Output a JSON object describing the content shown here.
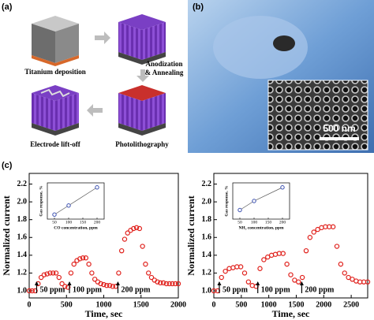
{
  "panels": {
    "a": {
      "label": "(a)",
      "steps": [
        "Titanium deposition",
        [
          "Anodization",
          "& Annealing"
        ],
        "Photolithography",
        "Electrode lift-off"
      ]
    },
    "b": {
      "label": "(b)",
      "scale_bar": "500 nm"
    },
    "c": {
      "label": "(c)"
    }
  },
  "chart_data": [
    {
      "type": "scatter",
      "xlabel": "Time, sec",
      "ylabel": "Normalized current",
      "color": "#e0201b",
      "xlim": [
        0,
        2000
      ],
      "xticks": [
        0,
        500,
        1000,
        1500,
        2000
      ],
      "ylim": [
        0.92,
        2.32
      ],
      "yticks": [
        {
          "value": 1,
          "label": "1.0"
        },
        1.2,
        1.4,
        1.6,
        1.8,
        {
          "value": 2,
          "label": "2.0"
        },
        2.2
      ],
      "annotations": [
        {
          "text": "50 ppm",
          "x": 100
        },
        {
          "text": "100 ppm",
          "x": 540
        },
        {
          "text": "200 ppm",
          "x": 1190
        }
      ],
      "x": [
        0,
        40,
        80,
        120,
        160,
        200,
        240,
        280,
        320,
        360,
        400,
        440,
        480,
        520,
        560,
        600,
        640,
        680,
        720,
        760,
        800,
        840,
        880,
        920,
        960,
        1000,
        1040,
        1080,
        1120,
        1160,
        1200,
        1240,
        1280,
        1320,
        1360,
        1400,
        1440,
        1480,
        1520,
        1560,
        1600,
        1640,
        1680,
        1720,
        1760,
        1800,
        1840,
        1880,
        1920,
        1960,
        2000
      ],
      "values": [
        1.0,
        1.0,
        1.0,
        1.08,
        1.15,
        1.18,
        1.19,
        1.2,
        1.2,
        1.2,
        1.15,
        1.08,
        1.05,
        1.04,
        1.2,
        1.3,
        1.34,
        1.36,
        1.37,
        1.37,
        1.3,
        1.2,
        1.13,
        1.1,
        1.08,
        1.07,
        1.06,
        1.06,
        1.05,
        1.05,
        1.2,
        1.45,
        1.58,
        1.65,
        1.68,
        1.7,
        1.71,
        1.7,
        1.5,
        1.3,
        1.2,
        1.15,
        1.12,
        1.1,
        1.09,
        1.09,
        1.08,
        1.08,
        1.08,
        1.08,
        1.08
      ]
    },
    {
      "type": "scatter",
      "xlabel": "Time, sec",
      "ylabel": "Normalized current",
      "color": "#e0201b",
      "xlim": [
        0,
        2800
      ],
      "xticks": [
        0,
        500,
        1000,
        1500,
        2000,
        2500
      ],
      "ylim": [
        0.92,
        2.32
      ],
      "yticks": [
        {
          "value": 1,
          "label": "1.0"
        },
        1.2,
        1.4,
        1.6,
        1.8,
        {
          "value": 2,
          "label": "2.0"
        },
        2.2
      ],
      "annotations": [
        {
          "text": "50 ppm",
          "x": 100
        },
        {
          "text": "100 ppm",
          "x": 800
        },
        {
          "text": "200 ppm",
          "x": 1600
        }
      ],
      "x": [
        0,
        70,
        140,
        210,
        280,
        350,
        420,
        490,
        560,
        630,
        700,
        770,
        840,
        910,
        980,
        1050,
        1120,
        1190,
        1260,
        1330,
        1400,
        1470,
        1540,
        1610,
        1680,
        1750,
        1820,
        1890,
        1960,
        2030,
        2100,
        2170,
        2240,
        2310,
        2380,
        2450,
        2520,
        2590,
        2660,
        2730,
        2800
      ],
      "values": [
        1.0,
        1.0,
        1.15,
        1.22,
        1.25,
        1.26,
        1.27,
        1.27,
        1.2,
        1.1,
        1.06,
        1.05,
        1.25,
        1.35,
        1.38,
        1.4,
        1.41,
        1.42,
        1.42,
        1.3,
        1.18,
        1.12,
        1.1,
        1.15,
        1.45,
        1.6,
        1.66,
        1.69,
        1.71,
        1.72,
        1.72,
        1.72,
        1.5,
        1.3,
        1.2,
        1.15,
        1.13,
        1.11,
        1.1,
        1.1,
        1.1
      ]
    },
    {
      "type": "inset",
      "xlabel": "CO concentration, ppm",
      "ylabel": "Gas response, %",
      "color": "#3a4fb0",
      "xlim": [
        25,
        225
      ],
      "xticks": [
        50,
        100,
        150,
        200
      ],
      "ylim": [
        10,
        50
      ],
      "x": [
        50,
        100,
        200
      ],
      "values": [
        15,
        25,
        45
      ]
    },
    {
      "type": "inset",
      "xlabel": "NH₃ concentration, ppm",
      "ylabel": "Gas response, %",
      "color": "#3a4fb0",
      "xlim": [
        25,
        225
      ],
      "xticks": [
        50,
        100,
        150,
        200
      ],
      "ylim": [
        10,
        50
      ],
      "x": [
        50,
        100,
        200
      ],
      "values": [
        20,
        30,
        45
      ]
    }
  ]
}
